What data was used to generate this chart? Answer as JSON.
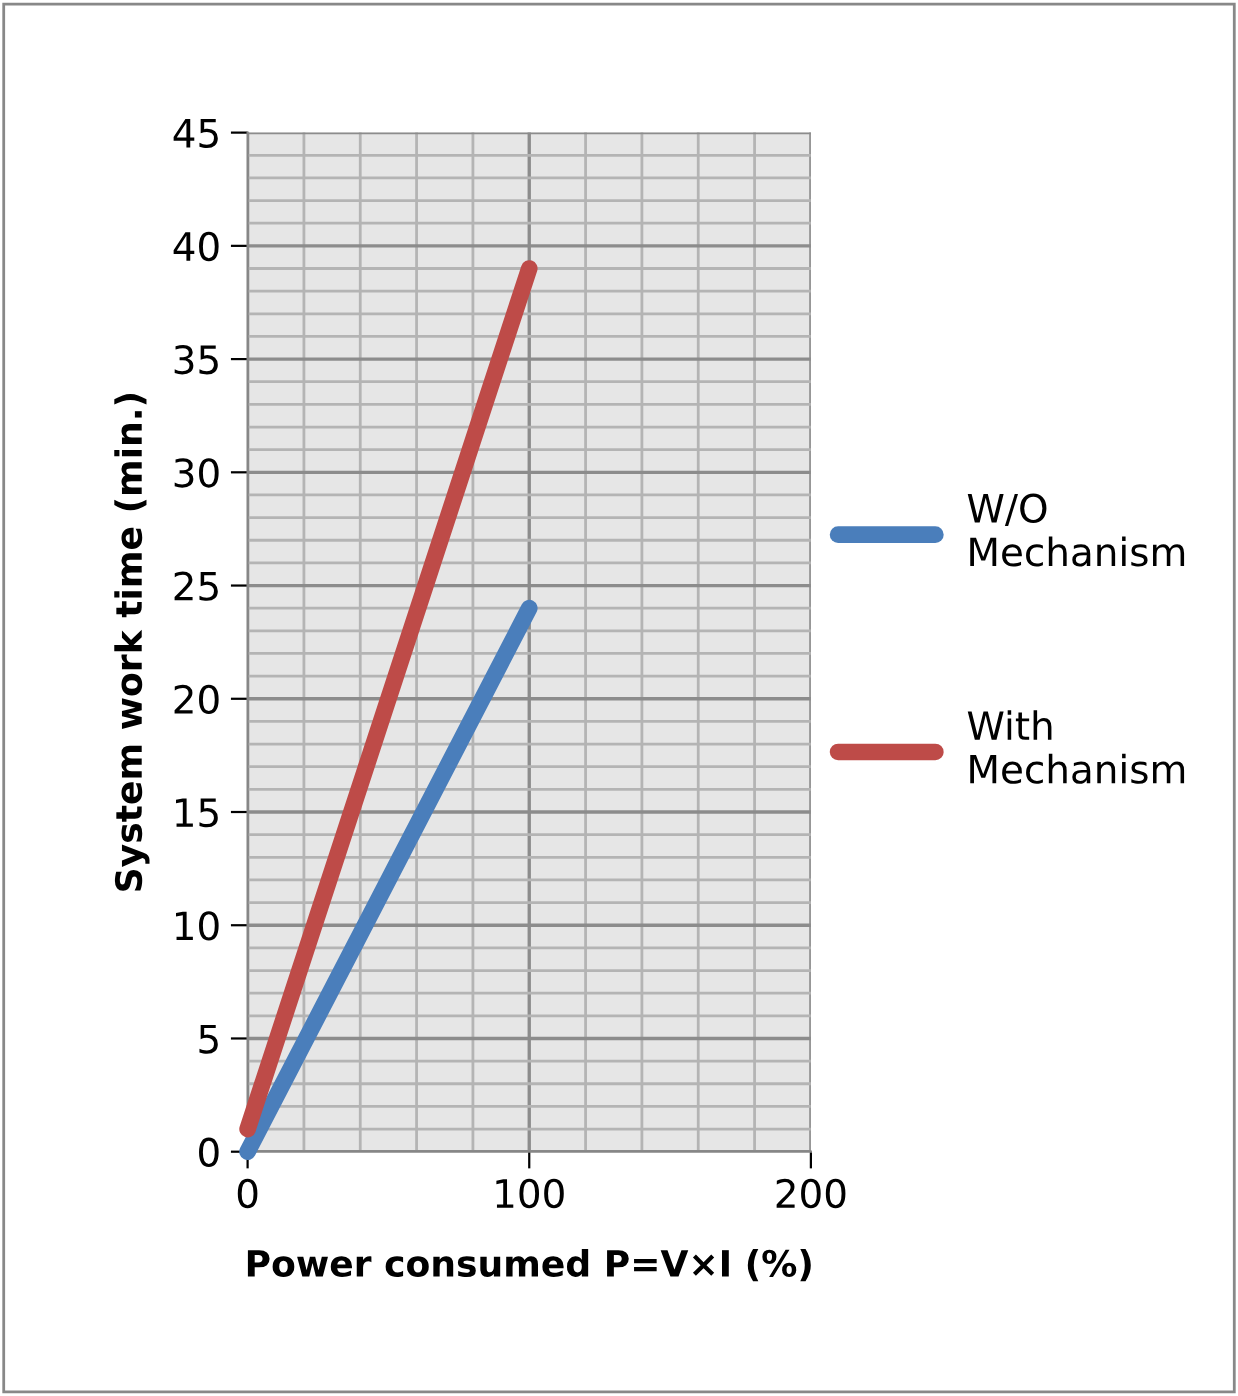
{
  "chart_data": {
    "type": "line",
    "xlabel": "Power consumed P=V×I (%)",
    "ylabel": "System work time (min.)",
    "x": [
      0,
      100
    ],
    "series": [
      {
        "name": "W/O Mechanism",
        "color": "#4a7ebb",
        "values": [
          0,
          24
        ]
      },
      {
        "name": "With Mechanism",
        "color": "#be4b48",
        "values": [
          1,
          39
        ]
      }
    ],
    "xlim": [
      0,
      200
    ],
    "xticks": [
      0,
      100,
      200
    ],
    "ylim": [
      0,
      45
    ],
    "yticks": [
      0,
      5,
      10,
      15,
      20,
      25,
      30,
      35,
      40,
      45
    ],
    "grid": true,
    "legend": "right",
    "marker": "none",
    "line_style": "solid"
  }
}
